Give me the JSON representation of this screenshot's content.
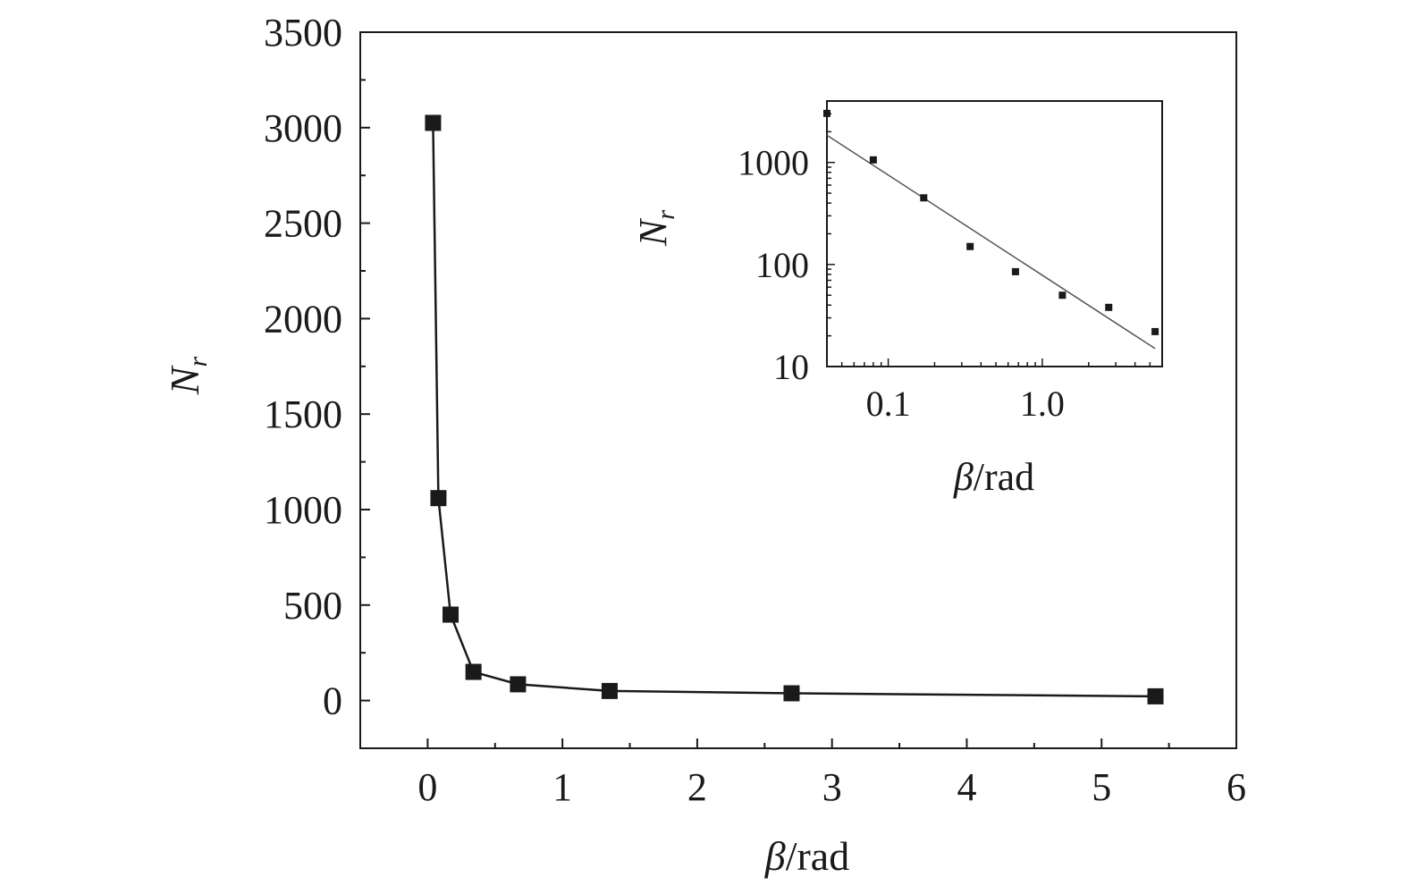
{
  "chart_data": [
    {
      "type": "line",
      "title": "",
      "xlabel": {
        "symbol": "β",
        "unit": "/rad"
      },
      "ylabel": {
        "symbol": "N",
        "subscript": "r"
      },
      "xlim": [
        -0.5,
        6
      ],
      "ylim": [
        -250,
        3500
      ],
      "xticks": [
        "0",
        "1",
        "2",
        "3",
        "4",
        "5",
        "6"
      ],
      "yticks": [
        "0",
        "500",
        "1000",
        "1500",
        "2000",
        "2500",
        "3000",
        "3500"
      ],
      "marker": "square",
      "color": "#1a1a1a",
      "series": [
        {
          "x": [
            0.04,
            0.08,
            0.17,
            0.34,
            0.67,
            1.35,
            2.7,
            5.4
          ],
          "y": [
            3025,
            1060,
            450,
            150,
            85,
            50,
            38,
            22
          ]
        }
      ]
    },
    {
      "type": "scatter",
      "title": "",
      "xlabel": {
        "symbol": "β",
        "unit": "/rad"
      },
      "ylabel": {
        "symbol": "N",
        "subscript": "r"
      },
      "xscale": "log",
      "yscale": "log",
      "xlim": [
        0.04,
        6
      ],
      "ylim": [
        10,
        4000
      ],
      "xticks": [
        "0.1",
        "1.0"
      ],
      "yticks": [
        "10",
        "100",
        "1000"
      ],
      "marker": "square",
      "color": "#1a1a1a",
      "series": [
        {
          "x": [
            0.04,
            0.08,
            0.17,
            0.34,
            0.67,
            1.35,
            2.7,
            5.4
          ],
          "y": [
            3025,
            1060,
            450,
            150,
            85,
            50,
            38,
            22
          ]
        }
      ],
      "fit_line": {
        "type": "power-law",
        "x": [
          0.04,
          5.4
        ],
        "y": [
          1850,
          15
        ]
      }
    }
  ]
}
